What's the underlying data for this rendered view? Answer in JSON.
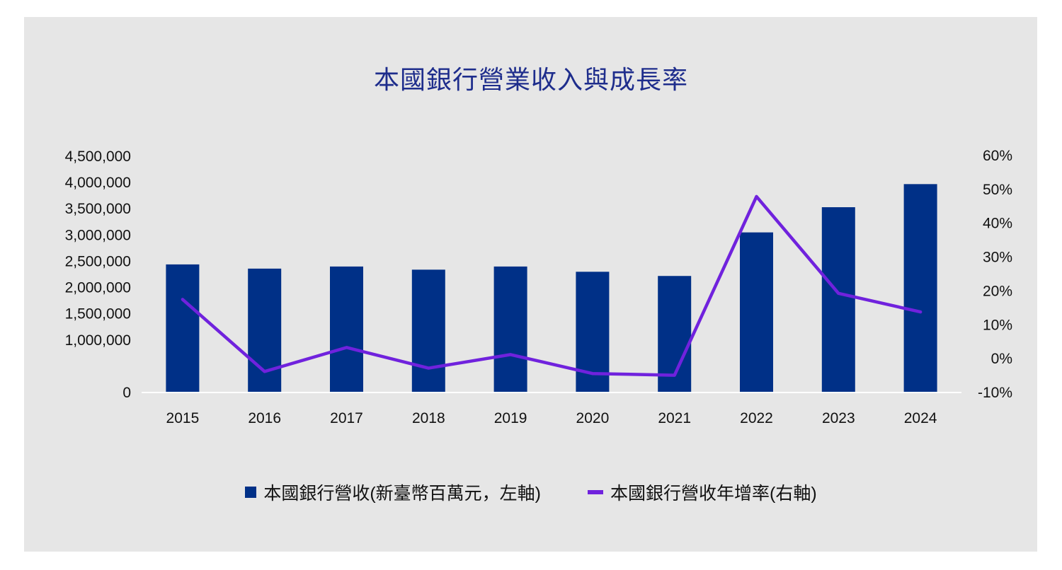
{
  "chart_data": {
    "type": "bar",
    "title": "本國銀行營業收入與成長率",
    "categories": [
      "2015",
      "2016",
      "2017",
      "2018",
      "2019",
      "2020",
      "2021",
      "2022",
      "2023",
      "2024"
    ],
    "series": [
      {
        "name": "本國銀行營收(新臺幣百萬元，左軸)",
        "type": "bar",
        "axis": "left",
        "color": "#003087",
        "values": [
          2440000,
          2360000,
          2400000,
          2340000,
          2400000,
          2300000,
          2220000,
          3050000,
          3530000,
          3970000
        ]
      },
      {
        "name": "本國銀行營收年增率(右軸)",
        "type": "line",
        "axis": "right",
        "color": "#7022dd",
        "values": [
          17.5,
          -3.8,
          3.3,
          -2.8,
          1.2,
          -4.4,
          -4.9,
          47.9,
          19.3,
          13.8
        ]
      }
    ],
    "left_axis": {
      "min": 0,
      "max": 4500000,
      "ticks": [
        0,
        1000000,
        1500000,
        2000000,
        2500000,
        3000000,
        3500000,
        4000000,
        4500000
      ],
      "tick_labels": [
        "0",
        "1,000,000",
        "1,500,000",
        "2,000,000",
        "2,500,000",
        "3,000,000",
        "3,500,000",
        "4,000,000",
        "4,500,000"
      ]
    },
    "right_axis": {
      "min": -10,
      "max": 60,
      "ticks": [
        -10,
        0,
        10,
        20,
        30,
        40,
        50,
        60
      ],
      "tick_labels": [
        "-10%",
        "0%",
        "10%",
        "20%",
        "30%",
        "40%",
        "50%",
        "60%"
      ]
    },
    "grid": false,
    "legend_position": "bottom"
  }
}
